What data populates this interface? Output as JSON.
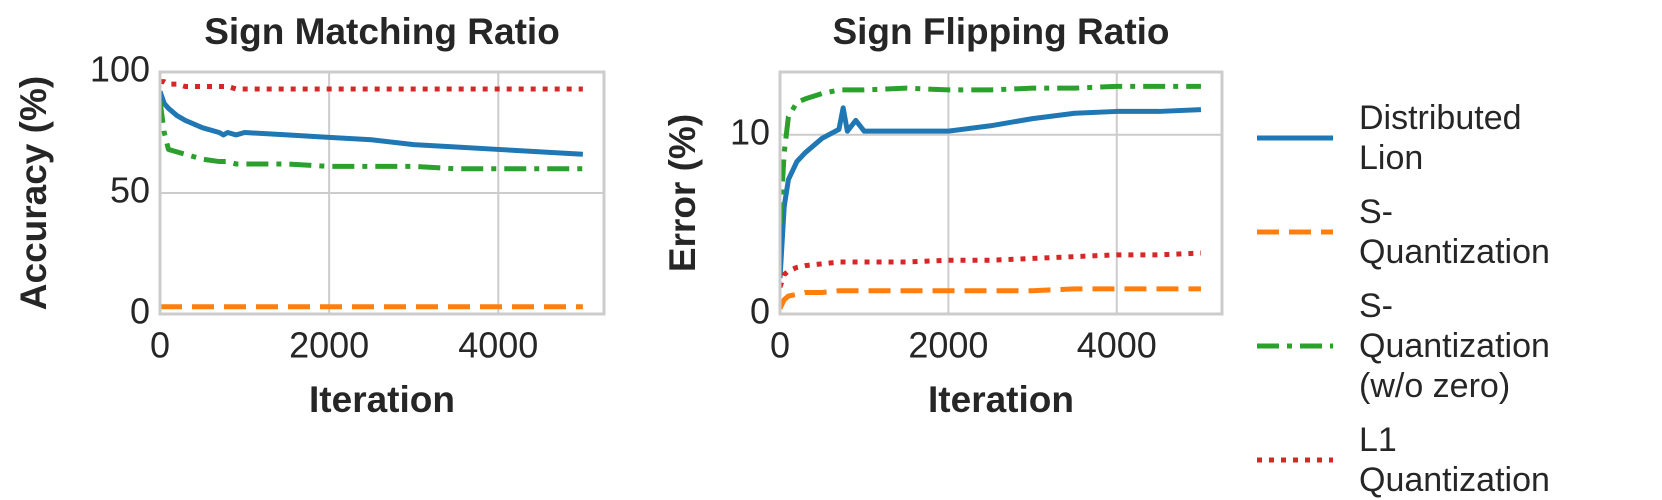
{
  "chart_data": [
    {
      "type": "line",
      "title": "Sign Matching Ratio",
      "x_label": "Iteration",
      "y_label": "Accuracy (%)",
      "x": [
        0,
        50,
        100,
        200,
        300,
        500,
        700,
        750,
        800,
        900,
        1000,
        1500,
        2000,
        2500,
        3000,
        3500,
        4000,
        4500,
        5000
      ],
      "xlim": [
        0,
        5250
      ],
      "xticks": [
        0,
        2000,
        4000
      ],
      "ylim": [
        0,
        100
      ],
      "yticks": [
        0,
        50,
        100
      ],
      "grid": true,
      "series": [
        {
          "color": "#1f77b4",
          "style": "solid",
          "values": [
            92,
            87,
            85,
            82,
            80,
            77,
            75,
            74,
            75,
            74,
            75,
            74,
            73,
            72,
            70,
            69,
            68,
            67,
            66
          ]
        },
        {
          "color": "#ff7f0e",
          "style": "dashed",
          "values": [
            3,
            3,
            3,
            3,
            3,
            3,
            3,
            3,
            3,
            3,
            3,
            3,
            3,
            3,
            3,
            3,
            3,
            3,
            3
          ]
        },
        {
          "color": "#2ca02c",
          "style": "dashdot",
          "values": [
            88,
            75,
            68,
            67,
            66,
            64,
            63,
            63,
            63,
            62,
            62,
            62,
            61,
            61,
            61,
            60,
            60,
            60,
            60
          ]
        },
        {
          "color": "#d62728",
          "style": "dotted",
          "values": [
            96,
            96,
            95,
            95,
            94,
            94,
            94,
            94,
            94,
            93,
            93,
            93,
            93,
            93,
            93,
            93,
            93,
            93,
            93
          ]
        }
      ]
    },
    {
      "type": "line",
      "title": "Sign Flipping Ratio",
      "x_label": "Iteration",
      "y_label": "Error (%)",
      "x": [
        0,
        50,
        100,
        200,
        300,
        500,
        700,
        750,
        800,
        900,
        1000,
        1500,
        2000,
        2500,
        3000,
        3500,
        4000,
        4500,
        5000
      ],
      "xlim": [
        0,
        5250
      ],
      "xticks": [
        0,
        2000,
        4000
      ],
      "ylim": [
        0,
        13.5
      ],
      "yticks": [
        0,
        10
      ],
      "grid": true,
      "legend": "right",
      "series": [
        {
          "name": "Distributed Lion",
          "color": "#1f77b4",
          "style": "solid",
          "values": [
            2,
            6,
            7.5,
            8.5,
            9,
            9.8,
            10.3,
            11.5,
            10.2,
            10.8,
            10.2,
            10.2,
            10.2,
            10.5,
            10.9,
            11.2,
            11.3,
            11.3,
            11.4
          ]
        },
        {
          "name": "S-Quantization",
          "color": "#ff7f0e",
          "style": "dashed",
          "values": [
            0.3,
            0.8,
            1,
            1.1,
            1.2,
            1.2,
            1.3,
            1.3,
            1.3,
            1.3,
            1.3,
            1.3,
            1.3,
            1.3,
            1.3,
            1.4,
            1.4,
            1.4,
            1.4
          ]
        },
        {
          "name": "S-Quantization (w/o zero)",
          "color": "#2ca02c",
          "style": "dashdot",
          "values": [
            5,
            9,
            11,
            11.8,
            12,
            12.3,
            12.5,
            12.5,
            12.5,
            12.5,
            12.5,
            12.6,
            12.5,
            12.5,
            12.6,
            12.6,
            12.7,
            12.7,
            12.7
          ]
        },
        {
          "name": "L1 Quantization",
          "color": "#d62728",
          "style": "dotted",
          "values": [
            1.5,
            2.2,
            2.4,
            2.6,
            2.7,
            2.8,
            2.9,
            2.9,
            2.9,
            2.9,
            2.9,
            2.9,
            3,
            3,
            3.1,
            3.2,
            3.3,
            3.3,
            3.4
          ]
        }
      ]
    }
  ]
}
